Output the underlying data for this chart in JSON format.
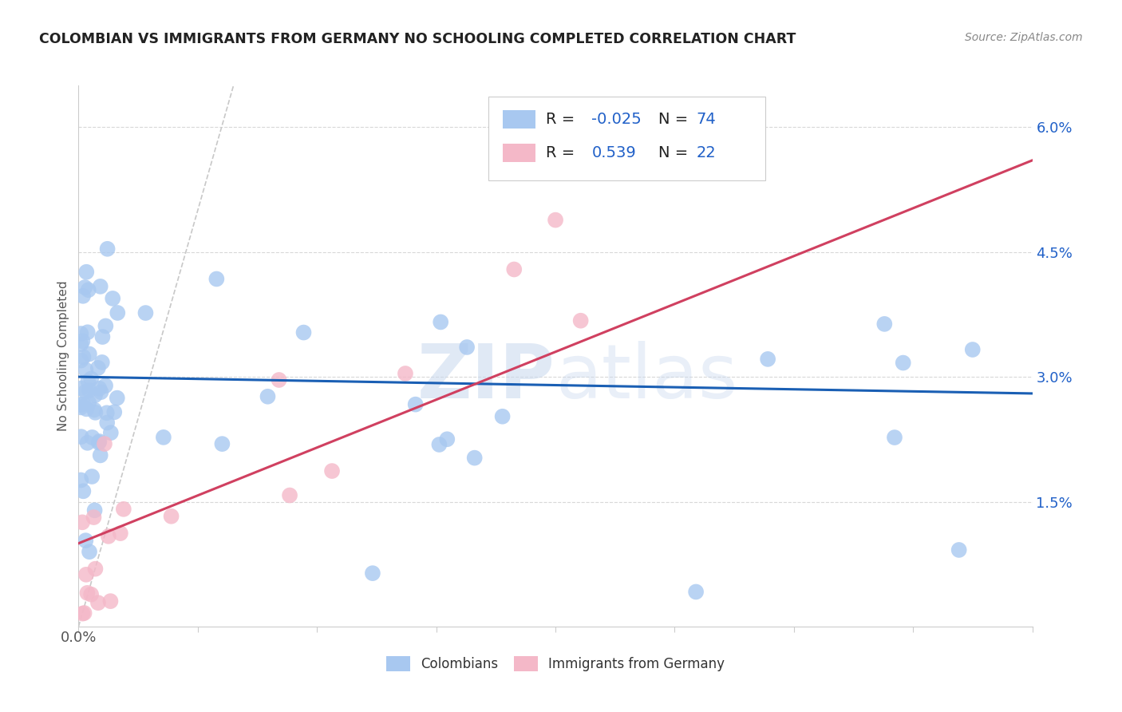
{
  "title": "COLOMBIAN VS IMMIGRANTS FROM GERMANY NO SCHOOLING COMPLETED CORRELATION CHART",
  "source": "Source: ZipAtlas.com",
  "ylabel": "No Schooling Completed",
  "ytick_labels": [
    "6.0%",
    "4.5%",
    "3.0%",
    "1.5%"
  ],
  "ytick_vals": [
    0.06,
    0.045,
    0.03,
    0.015
  ],
  "xlim": [
    0.0,
    0.4
  ],
  "ylim": [
    0.0,
    0.065
  ],
  "blue_color": "#a8c8f0",
  "pink_color": "#f4b8c8",
  "blue_line_color": "#1a5fb4",
  "pink_line_color": "#d04060",
  "diag_line_color": "#c8c8c8",
  "grid_color": "#d8d8d8",
  "background_color": "#ffffff",
  "watermark_zip": "ZIP",
  "watermark_atlas": "atlas",
  "title_fontsize": 12.5,
  "source_fontsize": 10,
  "tick_label_fontsize": 13,
  "legend_fontsize": 14,
  "ylabel_fontsize": 11,
  "blue_slope": -0.005,
  "blue_intercept": 0.03,
  "pink_slope": 0.115,
  "pink_intercept": 0.01,
  "legend_r1_color": "#2060c8",
  "legend_r2_color": "#2060c8",
  "legend_n_color": "#2060c8",
  "axis_color": "#cccccc",
  "label_color": "#555555",
  "xtick_vals": [
    0.0,
    0.05,
    0.1,
    0.15,
    0.2,
    0.25,
    0.3,
    0.35,
    0.4
  ]
}
